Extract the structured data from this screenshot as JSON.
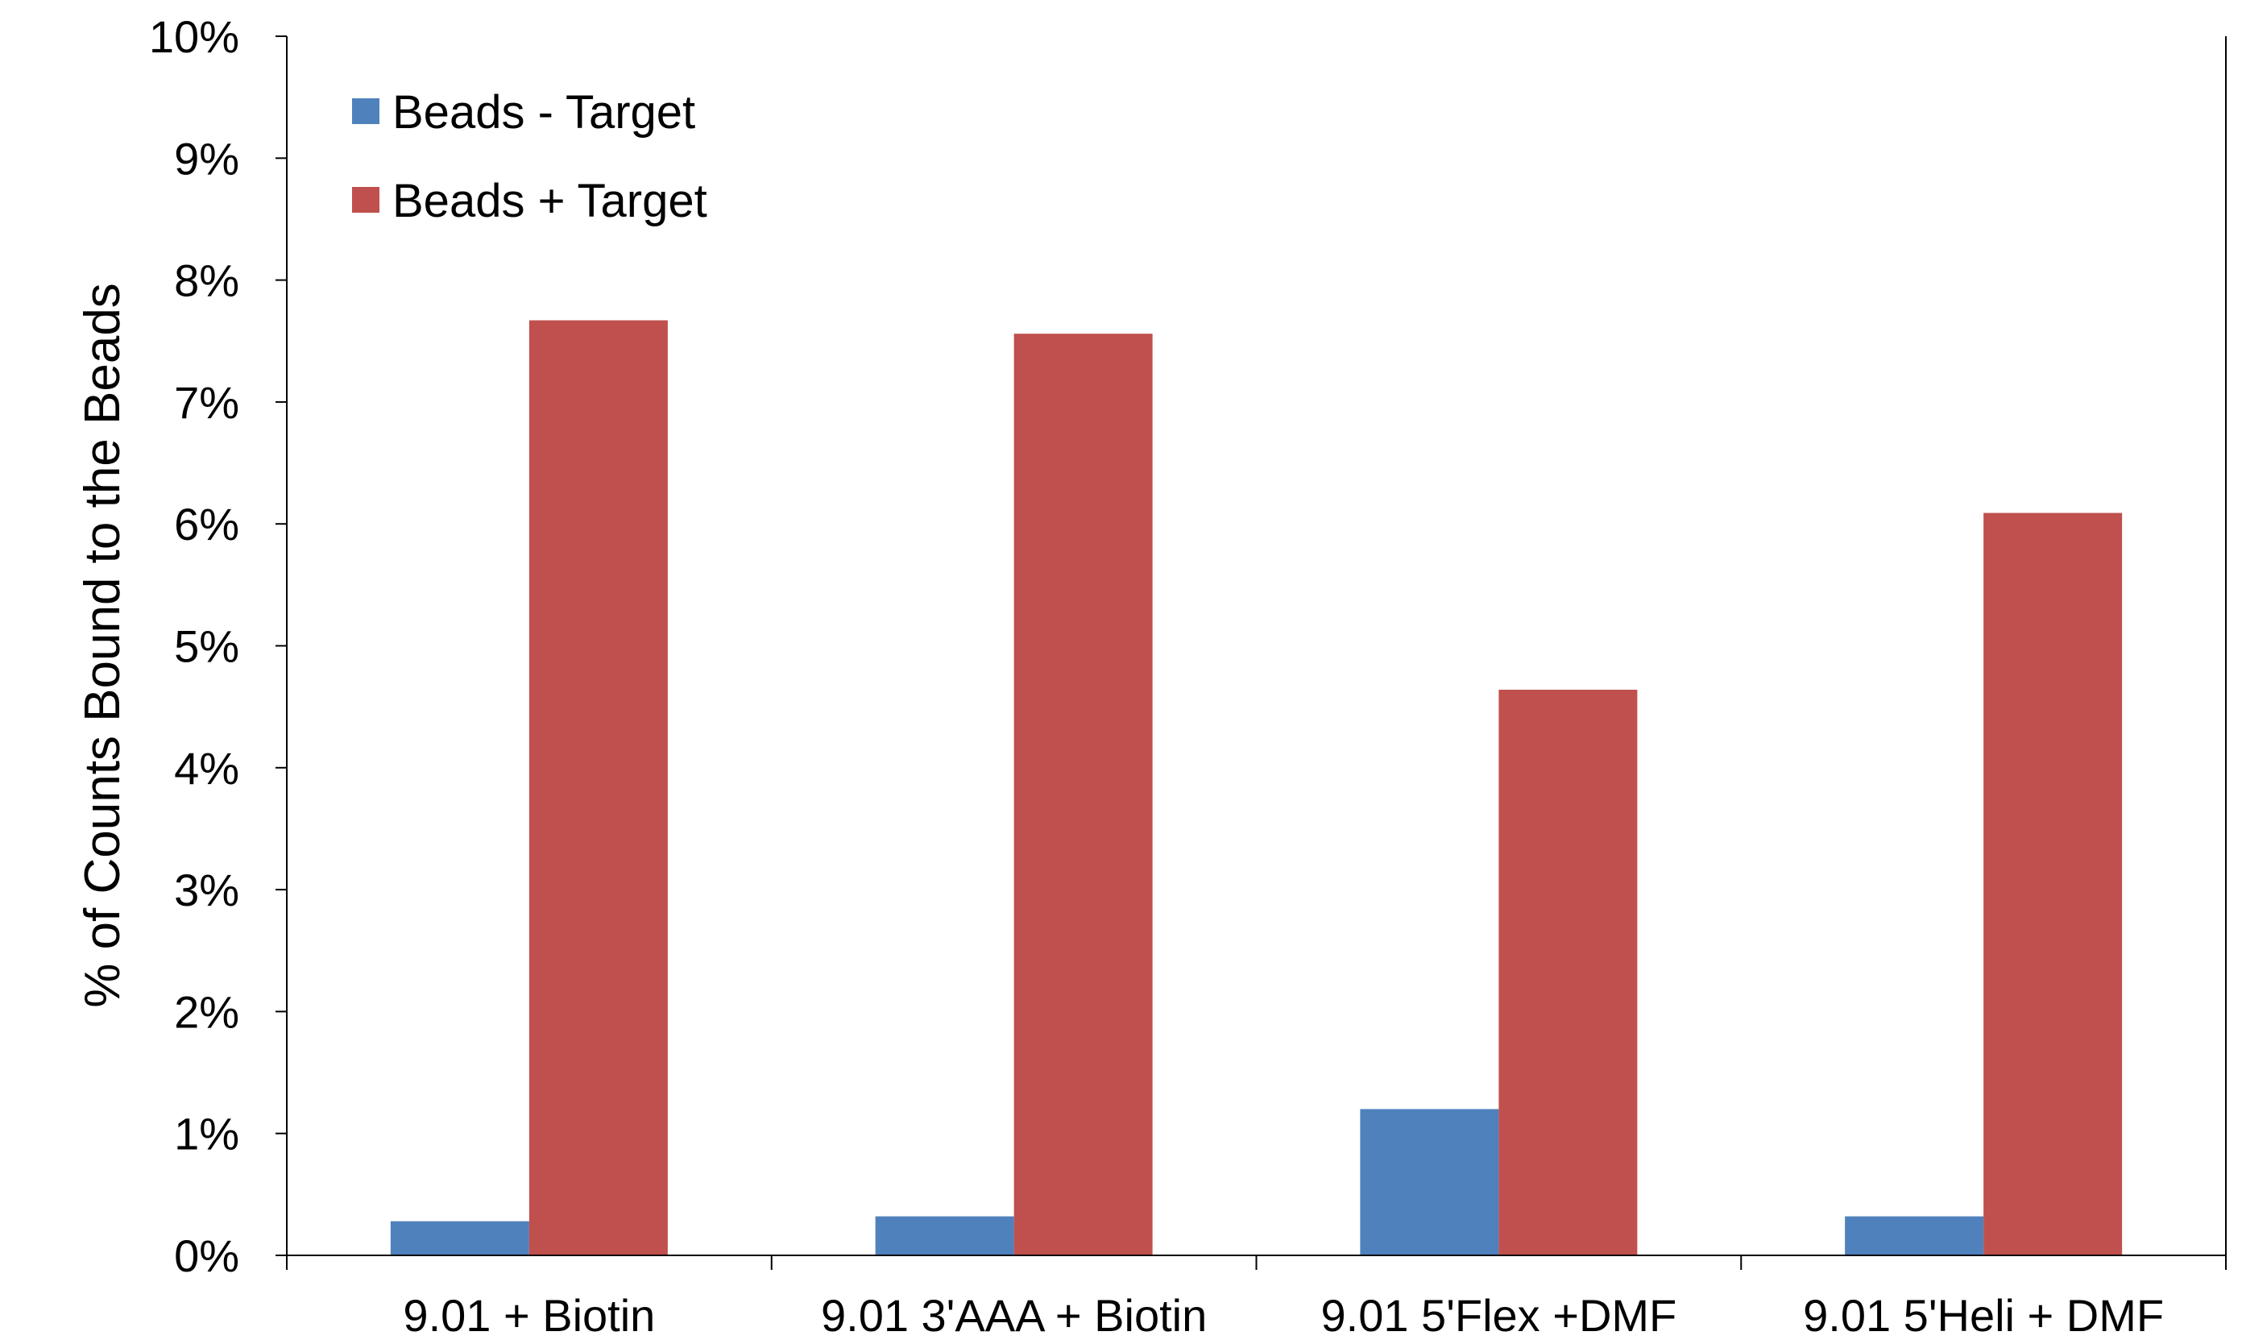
{
  "chart_data": {
    "type": "bar",
    "title": "",
    "xlabel": "",
    "ylabel": "% of Counts Bound to the Beads",
    "ylim": [
      0,
      10
    ],
    "y_ticks": [
      0,
      1,
      2,
      3,
      4,
      5,
      6,
      7,
      8,
      9,
      10
    ],
    "y_tick_labels": [
      "0%",
      "1%",
      "2%",
      "3%",
      "4%",
      "5%",
      "6%",
      "7%",
      "8%",
      "9%",
      "10%"
    ],
    "categories": [
      "9.01 + Biotin",
      "9.01 3'AAA + Biotin",
      "9.01 5'Flex +DMF",
      "9.01 5'Heli + DMF"
    ],
    "series": [
      {
        "name": "Beads - Target",
        "color": "#4F81BD",
        "values": [
          0.28,
          0.32,
          1.2,
          0.32
        ]
      },
      {
        "name": "Beads + Target",
        "color": "#C0504D",
        "values": [
          7.67,
          7.56,
          4.64,
          6.09
        ]
      }
    ],
    "grid": false,
    "legend_position": "top-left"
  }
}
